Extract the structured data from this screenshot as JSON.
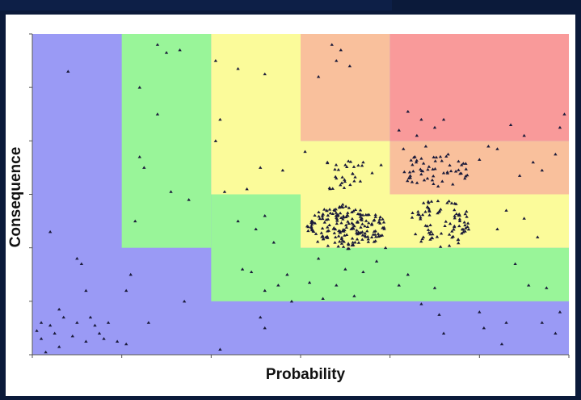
{
  "chart_data": {
    "type": "scatter",
    "xlabel": "Probability",
    "ylabel": "Consequence",
    "xlim": [
      0,
      6
    ],
    "ylim": [
      0,
      6
    ],
    "grid": false,
    "zone_colors": {
      "low": "#9a9af5",
      "moderate": "#99f599",
      "medium": "#fbfb9a",
      "high": "#f9c09c",
      "critical": "#f99a9a"
    },
    "zones": [
      {
        "name": "moderate",
        "x0": 1,
        "x1": 2,
        "y0": 2,
        "y1": 6
      },
      {
        "name": "medium",
        "x0": 2,
        "x1": 3,
        "y0": 3,
        "y1": 6
      },
      {
        "name": "moderate",
        "x0": 2,
        "x1": 3,
        "y0": 1,
        "y1": 3
      },
      {
        "name": "moderate",
        "x0": 3,
        "x1": 6,
        "y0": 1,
        "y1": 2
      },
      {
        "name": "medium",
        "x0": 3,
        "x1": 6,
        "y0": 2,
        "y1": 3
      },
      {
        "name": "medium",
        "x0": 3,
        "x1": 4,
        "y0": 3,
        "y1": 4
      },
      {
        "name": "high",
        "x0": 3,
        "x1": 4,
        "y0": 4,
        "y1": 6
      },
      {
        "name": "high",
        "x0": 4,
        "x1": 6,
        "y0": 3,
        "y1": 4
      },
      {
        "name": "critical",
        "x0": 4,
        "x1": 6,
        "y0": 4,
        "y1": 6
      }
    ],
    "point_color": "#1a1a3a",
    "points": [
      [
        0.4,
        5.3
      ],
      [
        0.2,
        2.3
      ],
      [
        0.5,
        1.8
      ],
      [
        0.6,
        1.2
      ],
      [
        0.55,
        1.7
      ],
      [
        0.1,
        0.6
      ],
      [
        0.2,
        0.55
      ],
      [
        0.25,
        0.4
      ],
      [
        0.1,
        0.3
      ],
      [
        0.3,
        0.15
      ],
      [
        0.15,
        0.05
      ],
      [
        0.05,
        0.45
      ],
      [
        0.45,
        0.35
      ],
      [
        0.5,
        0.6
      ],
      [
        0.65,
        0.7
      ],
      [
        0.7,
        0.55
      ],
      [
        0.75,
        0.4
      ],
      [
        0.8,
        0.3
      ],
      [
        0.85,
        0.6
      ],
      [
        0.6,
        0.25
      ],
      [
        0.35,
        0.7
      ],
      [
        1.1,
        1.5
      ],
      [
        1.05,
        1.2
      ],
      [
        1.3,
        0.6
      ],
      [
        1.7,
        1.0
      ],
      [
        1.05,
        0.2
      ],
      [
        1.5,
        5.65
      ],
      [
        1.65,
        5.7
      ],
      [
        1.4,
        5.8
      ],
      [
        1.25,
        3.5
      ],
      [
        1.2,
        3.7
      ],
      [
        1.15,
        2.5
      ],
      [
        1.55,
        3.05
      ],
      [
        1.75,
        2.9
      ],
      [
        1.4,
        4.5
      ],
      [
        2.05,
        5.5
      ],
      [
        2.3,
        5.35
      ],
      [
        2.6,
        5.25
      ],
      [
        2.1,
        4.4
      ],
      [
        2.15,
        3.05
      ],
      [
        2.4,
        3.1
      ],
      [
        2.8,
        3.45
      ],
      [
        2.55,
        3.5
      ],
      [
        2.3,
        2.5
      ],
      [
        2.5,
        2.35
      ],
      [
        2.6,
        2.6
      ],
      [
        2.7,
        2.1
      ],
      [
        2.35,
        1.6
      ],
      [
        2.45,
        1.55
      ],
      [
        2.6,
        1.2
      ],
      [
        2.75,
        1.3
      ],
      [
        2.85,
        1.5
      ],
      [
        2.9,
        1.0
      ],
      [
        2.55,
        0.7
      ],
      [
        2.6,
        0.5
      ],
      [
        2.1,
        0.1
      ],
      [
        3.2,
        5.2
      ],
      [
        3.4,
        5.5
      ],
      [
        3.55,
        5.4
      ],
      [
        3.45,
        5.7
      ],
      [
        3.35,
        5.8
      ],
      [
        3.05,
        3.8
      ],
      [
        3.3,
        3.6
      ],
      [
        3.5,
        3.55
      ],
      [
        3.7,
        3.6
      ],
      [
        3.8,
        3.4
      ],
      [
        3.9,
        3.55
      ],
      [
        3.6,
        3.25
      ],
      [
        3.4,
        3.3
      ],
      [
        3.2,
        1.8
      ],
      [
        3.1,
        1.35
      ],
      [
        3.4,
        1.3
      ],
      [
        3.5,
        1.6
      ],
      [
        3.7,
        1.55
      ],
      [
        3.95,
        2.0
      ],
      [
        3.85,
        1.75
      ],
      [
        4.1,
        4.2
      ],
      [
        4.2,
        4.55
      ],
      [
        4.35,
        4.4
      ],
      [
        4.3,
        4.1
      ],
      [
        4.5,
        4.25
      ],
      [
        4.6,
        4.4
      ],
      [
        4.15,
        3.85
      ],
      [
        4.4,
        3.9
      ],
      [
        4.65,
        3.75
      ],
      [
        4.8,
        3.55
      ],
      [
        5.0,
        3.65
      ],
      [
        5.1,
        3.9
      ],
      [
        5.2,
        3.85
      ],
      [
        5.35,
        4.3
      ],
      [
        5.5,
        4.1
      ],
      [
        5.6,
        3.6
      ],
      [
        5.7,
        3.45
      ],
      [
        5.85,
        3.75
      ],
      [
        5.9,
        4.25
      ],
      [
        5.95,
        4.5
      ],
      [
        5.45,
        3.35
      ],
      [
        5.3,
        2.7
      ],
      [
        5.2,
        2.35
      ],
      [
        5.5,
        2.55
      ],
      [
        5.65,
        2.2
      ],
      [
        5.4,
        1.7
      ],
      [
        5.55,
        1.3
      ],
      [
        5.75,
        1.25
      ],
      [
        5.9,
        0.8
      ],
      [
        5.85,
        0.4
      ],
      [
        5.7,
        0.6
      ],
      [
        5.0,
        0.8
      ],
      [
        5.05,
        0.5
      ],
      [
        5.25,
        0.2
      ],
      [
        5.3,
        0.6
      ],
      [
        4.35,
        0.95
      ],
      [
        4.55,
        0.75
      ],
      [
        4.6,
        0.4
      ],
      [
        4.1,
        1.3
      ],
      [
        4.2,
        1.5
      ],
      [
        4.5,
        1.25
      ],
      [
        3.25,
        1.05
      ],
      [
        3.6,
        1.1
      ],
      [
        2.05,
        4.0
      ],
      [
        1.2,
        5.0
      ],
      [
        0.95,
        0.25
      ],
      [
        0.3,
        0.85
      ]
    ],
    "clusters": [
      {
        "cx": 3.5,
        "cy": 2.4,
        "rx": 0.45,
        "ry": 0.42,
        "count": 200
      },
      {
        "cx": 4.55,
        "cy": 2.45,
        "rx": 0.38,
        "ry": 0.45,
        "count": 85
      },
      {
        "cx": 4.5,
        "cy": 3.45,
        "rx": 0.4,
        "ry": 0.32,
        "count": 55
      },
      {
        "cx": 3.45,
        "cy": 3.35,
        "rx": 0.35,
        "ry": 0.3,
        "count": 25
      }
    ]
  }
}
